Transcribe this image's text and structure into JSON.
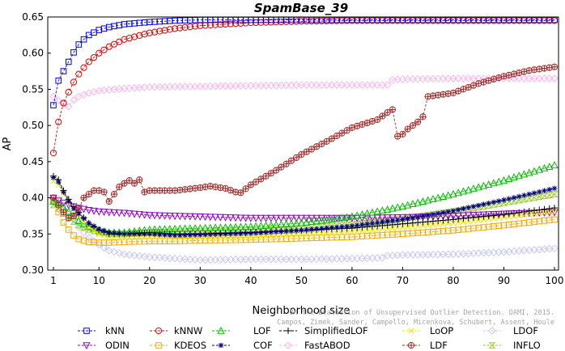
{
  "chart_data": {
    "type": "line",
    "title": "SpamBase_39",
    "xlabel": "Neighborhood size",
    "ylabel": "AP",
    "xlim": [
      0,
      100
    ],
    "ylim": [
      0.3,
      0.65
    ],
    "xticks": [
      1,
      10,
      20,
      30,
      40,
      50,
      60,
      70,
      80,
      90,
      100
    ],
    "yticks": [
      0.3,
      0.35,
      0.4,
      0.45,
      0.5,
      0.55,
      0.6,
      0.65
    ],
    "grid": false,
    "legend_position": "bottom",
    "watermark": [
      "Campos, Zimek, Sander, Campello, Micenkova, Schubert, Assent, Houle",
      "On the Evaluation of Unsupervised Outlier Detection. DAMI, 2015."
    ],
    "series": [
      {
        "name": "kNN",
        "color": "#0000ff",
        "marker": "square",
        "x": [
          1,
          2,
          3,
          4,
          5,
          6,
          7,
          8,
          10,
          12,
          15,
          20,
          25,
          30,
          40,
          50,
          60,
          70,
          80,
          90,
          100
        ],
        "y": [
          0.528,
          0.562,
          0.575,
          0.588,
          0.601,
          0.612,
          0.619,
          0.625,
          0.632,
          0.636,
          0.64,
          0.643,
          0.645,
          0.646,
          0.646,
          0.646,
          0.646,
          0.646,
          0.646,
          0.646,
          0.646
        ]
      },
      {
        "name": "kNNW",
        "color": "#e00000",
        "marker": "circle",
        "x": [
          1,
          2,
          3,
          4,
          5,
          6,
          7,
          8,
          10,
          12,
          15,
          20,
          25,
          30,
          40,
          50,
          60,
          70,
          80,
          90,
          100
        ],
        "y": [
          0.462,
          0.505,
          0.531,
          0.546,
          0.56,
          0.571,
          0.58,
          0.588,
          0.6,
          0.609,
          0.619,
          0.628,
          0.634,
          0.638,
          0.642,
          0.644,
          0.645,
          0.645,
          0.645,
          0.645,
          0.645
        ]
      },
      {
        "name": "LOF",
        "color": "#00c000",
        "marker": "triangle-up",
        "x": [
          1,
          2,
          3,
          4,
          5,
          6,
          8,
          10,
          12,
          15,
          20,
          25,
          30,
          40,
          50,
          60,
          70,
          80,
          90,
          100
        ],
        "y": [
          0.395,
          0.392,
          0.387,
          0.381,
          0.375,
          0.368,
          0.36,
          0.355,
          0.352,
          0.352,
          0.356,
          0.357,
          0.358,
          0.36,
          0.365,
          0.374,
          0.388,
          0.405,
          0.424,
          0.445
        ]
      },
      {
        "name": "SimplifiedLOF",
        "color": "#000000",
        "marker": "plus",
        "x": [
          1,
          2,
          3,
          4,
          5,
          6,
          8,
          10,
          12,
          15,
          20,
          25,
          30,
          40,
          50,
          60,
          70,
          80,
          90,
          100
        ],
        "y": [
          0.43,
          0.425,
          0.41,
          0.398,
          0.388,
          0.38,
          0.365,
          0.355,
          0.35,
          0.35,
          0.352,
          0.35,
          0.35,
          0.352,
          0.355,
          0.358,
          0.364,
          0.37,
          0.377,
          0.386
        ]
      },
      {
        "name": "LoOP",
        "color": "#f2e600",
        "marker": "x",
        "x": [
          1,
          2,
          3,
          4,
          5,
          6,
          8,
          10,
          12,
          15,
          20,
          25,
          30,
          40,
          50,
          60,
          70,
          80,
          90,
          100
        ],
        "y": [
          0.423,
          0.418,
          0.405,
          0.393,
          0.384,
          0.375,
          0.36,
          0.35,
          0.346,
          0.345,
          0.346,
          0.345,
          0.345,
          0.346,
          0.349,
          0.353,
          0.359,
          0.365,
          0.373,
          0.381
        ]
      },
      {
        "name": "LDOF",
        "color": "#c8c8f5",
        "marker": "diamond",
        "x": [
          1,
          2,
          3,
          4,
          5,
          6,
          8,
          10,
          12,
          15,
          20,
          25,
          30,
          40,
          50,
          60,
          66,
          67,
          70,
          80,
          90,
          100
        ],
        "y": [
          0.4,
          0.398,
          0.39,
          0.38,
          0.37,
          0.36,
          0.345,
          0.335,
          0.327,
          0.322,
          0.318,
          0.316,
          0.314,
          0.315,
          0.315,
          0.316,
          0.317,
          0.32,
          0.321,
          0.322,
          0.325,
          0.33
        ]
      },
      {
        "name": "ODIN",
        "color": "#9400d3",
        "marker": "triangle-down",
        "x": [
          1,
          2,
          3,
          4,
          5,
          6,
          8,
          10,
          15,
          20,
          30,
          40,
          50,
          60,
          70,
          80,
          90,
          100
        ],
        "y": [
          0.4,
          0.396,
          0.393,
          0.39,
          0.388,
          0.386,
          0.383,
          0.381,
          0.379,
          0.376,
          0.374,
          0.372,
          0.372,
          0.372,
          0.373,
          0.375,
          0.378,
          0.38
        ]
      },
      {
        "name": "KDEOS",
        "color": "#ffa500",
        "marker": "square",
        "x": [
          1,
          2,
          3,
          4,
          5,
          6,
          8,
          10,
          12,
          15,
          20,
          25,
          30,
          40,
          50,
          60,
          70,
          80,
          90,
          100
        ],
        "y": [
          0.396,
          0.38,
          0.366,
          0.356,
          0.348,
          0.343,
          0.339,
          0.338,
          0.338,
          0.339,
          0.34,
          0.34,
          0.341,
          0.342,
          0.344,
          0.346,
          0.35,
          0.355,
          0.362,
          0.37
        ]
      },
      {
        "name": "COF",
        "color": "#000080",
        "marker": "asterisk",
        "x": [
          1,
          2,
          3,
          4,
          5,
          6,
          8,
          10,
          12,
          15,
          20,
          25,
          30,
          40,
          50,
          60,
          70,
          80,
          90,
          100
        ],
        "y": [
          0.428,
          0.422,
          0.408,
          0.395,
          0.385,
          0.378,
          0.365,
          0.357,
          0.352,
          0.35,
          0.35,
          0.348,
          0.349,
          0.351,
          0.355,
          0.361,
          0.37,
          0.382,
          0.397,
          0.413
        ]
      },
      {
        "name": "FastABOD",
        "color": "#ffb6f0",
        "marker": "diamond",
        "x": [
          1,
          2,
          3,
          4,
          5,
          6,
          8,
          10,
          15,
          20,
          30,
          40,
          50,
          60,
          67,
          68,
          70,
          80,
          90,
          100
        ],
        "y": [
          0.54,
          0.535,
          0.53,
          0.526,
          0.535,
          0.54,
          0.545,
          0.548,
          0.551,
          0.553,
          0.554,
          0.555,
          0.556,
          0.556,
          0.556,
          0.563,
          0.564,
          0.565,
          0.565,
          0.565
        ]
      },
      {
        "name": "LDF",
        "color": "#a52a2a",
        "marker": "circle-cross",
        "x": [
          1,
          2,
          3,
          4,
          5,
          6,
          7,
          8,
          9,
          10,
          11,
          12,
          13,
          14,
          15,
          16,
          17,
          18,
          19,
          20,
          25,
          30,
          32,
          35,
          37,
          38,
          40,
          45,
          50,
          55,
          60,
          65,
          67,
          68,
          69,
          70,
          71,
          72,
          73,
          74,
          75,
          80,
          85,
          90,
          95,
          100
        ],
        "y": [
          0.4,
          0.39,
          0.38,
          0.372,
          0.375,
          0.385,
          0.4,
          0.405,
          0.41,
          0.41,
          0.408,
          0.395,
          0.405,
          0.415,
          0.42,
          0.424,
          0.42,
          0.425,
          0.408,
          0.41,
          0.41,
          0.414,
          0.416,
          0.413,
          0.408,
          0.407,
          0.418,
          0.438,
          0.46,
          0.478,
          0.497,
          0.508,
          0.518,
          0.522,
          0.485,
          0.488,
          0.495,
          0.5,
          0.505,
          0.512,
          0.54,
          0.545,
          0.558,
          0.568,
          0.576,
          0.581
        ]
      },
      {
        "name": "INFLO",
        "color": "#9acd32",
        "marker": "hourglass",
        "x": [
          1,
          2,
          3,
          4,
          5,
          6,
          8,
          10,
          12,
          15,
          20,
          25,
          30,
          40,
          50,
          60,
          70,
          80,
          90,
          100
        ],
        "y": [
          0.39,
          0.385,
          0.378,
          0.372,
          0.367,
          0.362,
          0.356,
          0.352,
          0.35,
          0.35,
          0.352,
          0.352,
          0.353,
          0.355,
          0.358,
          0.363,
          0.371,
          0.381,
          0.393,
          0.405
        ]
      }
    ]
  }
}
